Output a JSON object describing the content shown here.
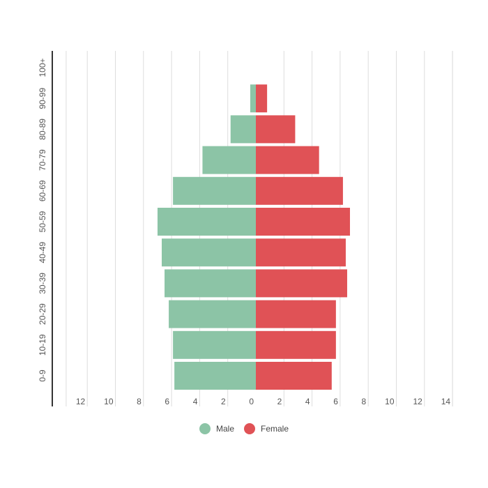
{
  "chart_data": {
    "type": "bar",
    "orientation": "horizontal",
    "title": "",
    "xlabel": "",
    "ylabel": "",
    "categories": [
      "0-9",
      "10-19",
      "20-29",
      "30-39",
      "40-49",
      "50-59",
      "60-69",
      "70-79",
      "80-89",
      "90-99",
      "100+"
    ],
    "series": [
      {
        "name": "Male",
        "color": "#8cc4a6",
        "direction": "left",
        "values": [
          5.8,
          5.9,
          6.2,
          6.5,
          6.7,
          7.0,
          5.9,
          3.8,
          1.8,
          0.4,
          0
        ]
      },
      {
        "name": "Female",
        "color": "#e05256",
        "direction": "right",
        "values": [
          5.4,
          5.7,
          5.7,
          6.5,
          6.4,
          6.7,
          6.2,
          4.5,
          2.8,
          0.8,
          0
        ]
      }
    ],
    "x_tick_labels": [
      "12",
      "10",
      "8",
      "6",
      "4",
      "2",
      "0",
      "2",
      "4",
      "6",
      "8",
      "10",
      "12",
      "14"
    ],
    "x_tick_values": [
      -12,
      -10,
      -8,
      -6,
      -4,
      -2,
      0,
      2,
      4,
      6,
      8,
      10,
      12,
      14
    ],
    "xlim": [
      -14,
      14
    ],
    "grid": "vertical",
    "legend": "bottom-center"
  }
}
